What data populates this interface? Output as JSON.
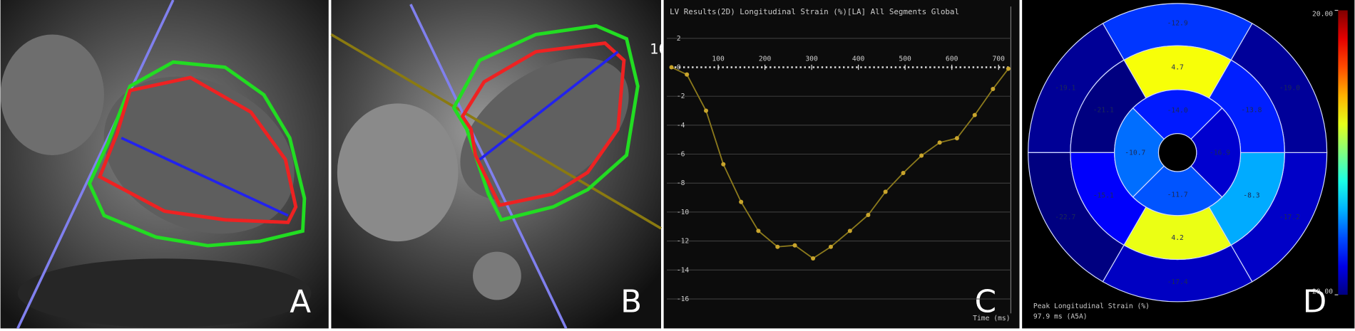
{
  "panel_labels": [
    "A",
    "B",
    "C",
    "D"
  ],
  "overlay_text": "10",
  "chart_data": [
    {
      "type": "line",
      "title": "LV Results(2D) Longitudinal Strain (%)[LA] All Segments Global",
      "x_label": "Time (ms)",
      "x": [
        0,
        33,
        74,
        111,
        149,
        186,
        227,
        264,
        303,
        341,
        382,
        421,
        458,
        496,
        535,
        574,
        611,
        649,
        688,
        721
      ],
      "series": [
        {
          "color": "#8c7a1c",
          "marker_color": "#c9a52c",
          "values": [
            0,
            -0.5,
            -3.0,
            -6.7,
            -9.3,
            -11.3,
            -12.4,
            -12.3,
            -13.2,
            -12.4,
            -11.3,
            -10.2,
            -8.6,
            -7.3,
            -6.1,
            -5.2,
            -4.9,
            -3.3,
            -1.5,
            -0.1
          ]
        }
      ],
      "xlim": [
        -10,
        730
      ],
      "ylim": [
        -17,
        4.2
      ],
      "xticks": [
        100,
        200,
        300,
        400,
        500,
        600,
        700
      ],
      "yticks": [
        2,
        0,
        -2,
        -4,
        -6,
        -8,
        -10,
        -12,
        -14,
        -16
      ],
      "grid": true
    },
    {
      "type": "bullseye",
      "colormap": "jet",
      "clim": [
        -20,
        20
      ],
      "colorbar_ticks": [
        {
          "value": 20,
          "label": "20.00"
        },
        {
          "value": -20,
          "label": "-20.00"
        }
      ],
      "annotations": [
        "Peak Longitudinal Strain (%)",
        "97.9 ms (A5A)"
      ],
      "rings": [
        {
          "values": [
            -12.9,
            -19.1,
            -22.7,
            -17.4,
            -17.2,
            -19.0
          ],
          "value_labels": [
            "-12.9",
            "-19.1",
            "-22.7",
            "-17.4",
            "-17.2",
            "-19.0"
          ]
        },
        {
          "values": [
            4.7,
            -21.1,
            -15.1,
            4.2,
            -8.3,
            -13.8
          ]
        },
        {
          "values": [
            -14.0,
            -10.7,
            -11.7,
            -16.9
          ],
          "value_labels": [
            "-14.0",
            "-10.7",
            "-11.7",
            "-16.9"
          ]
        }
      ]
    }
  ]
}
